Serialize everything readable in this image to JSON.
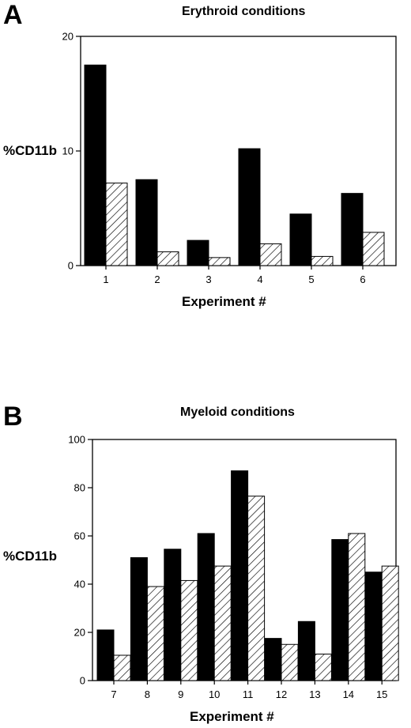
{
  "panels": [
    {
      "letter": "A"
    },
    {
      "letter": "B"
    }
  ],
  "chart_data": [
    {
      "type": "bar",
      "title": "Erythroid conditions",
      "xlabel": "Experiment #",
      "ylabel": "%CD11b",
      "ylim": [
        0,
        20
      ],
      "yticks": [
        0,
        10,
        20
      ],
      "categories": [
        "1",
        "2",
        "3",
        "4",
        "5",
        "6"
      ],
      "series": [
        {
          "values": [
            17.5,
            7.5,
            2.2,
            10.2,
            4.5,
            6.3
          ],
          "color": "#000000",
          "fill": "solid"
        },
        {
          "values": [
            7.2,
            1.2,
            0.7,
            1.9,
            0.8,
            2.9
          ],
          "color": "#000000",
          "fill": "hatched"
        }
      ],
      "grid": false
    },
    {
      "type": "bar",
      "title": "Myeloid conditions",
      "xlabel": "Experiment #",
      "ylabel": "%CD11b",
      "ylim": [
        0,
        100
      ],
      "yticks": [
        0,
        20,
        40,
        60,
        80,
        100
      ],
      "categories": [
        "7",
        "8",
        "9",
        "10",
        "11",
        "12",
        "13",
        "14",
        "15"
      ],
      "series": [
        {
          "values": [
            21,
            51,
            54.5,
            61,
            87,
            17.5,
            24.5,
            58.5,
            45
          ],
          "color": "#000000",
          "fill": "solid"
        },
        {
          "values": [
            10.5,
            39,
            41.5,
            47.5,
            76.5,
            15,
            11,
            61,
            47.5
          ],
          "color": "#000000",
          "fill": "hatched"
        }
      ],
      "grid": false
    }
  ]
}
